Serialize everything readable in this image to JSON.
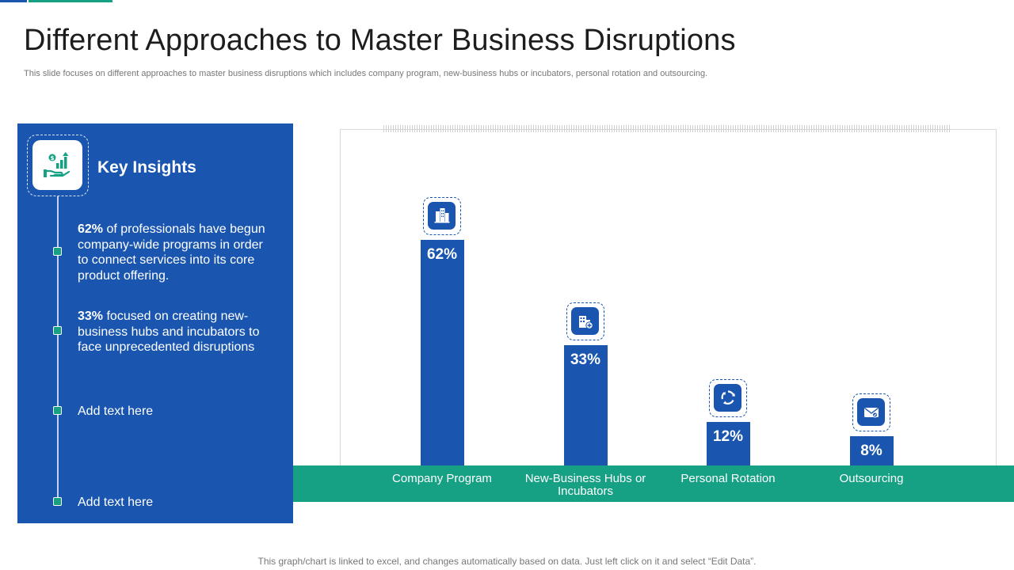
{
  "page": {
    "title": "Different Approaches to Master Business Disruptions",
    "subtitle": "This slide focuses on different approaches to master business disruptions which includes company program, new-business hubs or incubators, personal rotation and outsourcing.",
    "footer": "This graph/chart is linked to excel,  and changes automatically based on data. Just left click on it and select “Edit Data”."
  },
  "insights": {
    "heading": "Key Insights",
    "header_icon": "hand-money-growth-icon",
    "items": [
      {
        "highlight": "62%",
        "text": " of professionals have begun company-wide programs in order to connect services into its core product offering."
      },
      {
        "highlight": "33%",
        "text": " focused on creating new-business hubs and incubators to face unprecedented disruptions"
      },
      {
        "highlight": "",
        "text": "Add text here"
      },
      {
        "highlight": "",
        "text": "Add text here"
      }
    ]
  },
  "colors": {
    "primary_blue": "#1a56b0",
    "accent_green": "#16a084"
  },
  "chart_data": {
    "type": "bar",
    "title": "",
    "xlabel": "",
    "ylabel": "",
    "categories": [
      "Company Program",
      "New-Business Hubs or Incubators",
      "Personal Rotation",
      "Outsourcing"
    ],
    "category_lines": [
      [
        "Company Program"
      ],
      [
        "New-Business Hubs or",
        "Incubators"
      ],
      [
        "Personal Rotation"
      ],
      [
        "Outsourcing"
      ]
    ],
    "values": [
      62,
      33,
      12,
      8
    ],
    "value_labels": [
      "62%",
      "33%",
      "12%",
      "8%"
    ],
    "icons": [
      "office-building-icon",
      "building-add-icon",
      "rotation-cycle-icon",
      "outsourcing-mail-icon"
    ],
    "ylim": [
      0,
      100
    ],
    "grid": false,
    "legend": "none"
  }
}
